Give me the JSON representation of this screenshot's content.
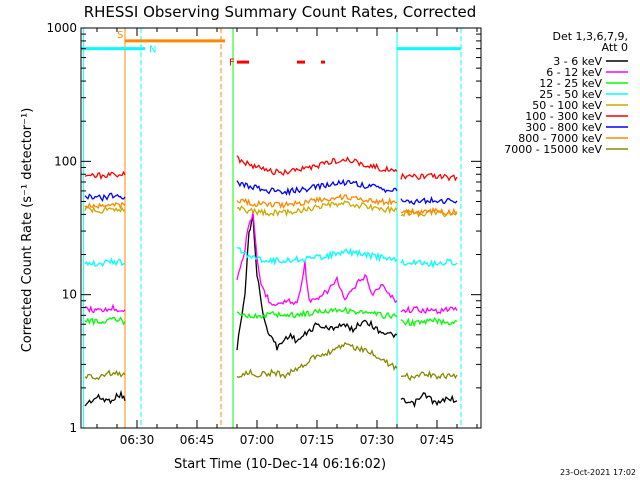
{
  "chart_data": {
    "type": "line",
    "title": "RHESSI Observing Summary Count Rates, Corrected",
    "xlabel": "Start Time (10-Dec-14 06:16:02)",
    "ylabel": "Corrected Count Rate (s⁻¹ detector⁻¹)",
    "yscale": "log",
    "ylim": [
      1,
      1000
    ],
    "xlim": [
      "06:16",
      "07:56"
    ],
    "x_ticks": [
      "06:30",
      "06:45",
      "07:00",
      "07:15",
      "07:30",
      "07:45"
    ],
    "y_ticks": [
      "1",
      "10",
      "100",
      "1000"
    ],
    "footer": "23-Oct-2021 17:02",
    "legend_header": [
      "Det 1,3,6,7,9,",
      "Att 0"
    ],
    "legend_placement": "right",
    "grid": false,
    "series": [
      {
        "name": "3 - 6 keV",
        "color": "#000000",
        "segments": [
          {
            "x": [
              "06:17",
              "06:20",
              "06:23",
              "06:26",
              "06:27"
            ],
            "y": [
              1.5,
              1.7,
              1.6,
              1.8,
              1.6
            ]
          },
          {
            "x": [
              "06:55",
              "06:57",
              "06:58",
              "06:59",
              "07:00",
              "07:02",
              "07:05",
              "07:08",
              "07:10",
              "07:12",
              "07:15",
              "07:18",
              "07:21",
              "07:24",
              "07:27",
              "07:30",
              "07:33",
              "07:35"
            ],
            "y": [
              4,
              10,
              30,
              38,
              14,
              6,
              4,
              5,
              4.5,
              5,
              6,
              5.5,
              6,
              5.5,
              6.5,
              5.5,
              5,
              5
            ]
          },
          {
            "x": [
              "07:36",
              "07:39",
              "07:42",
              "07:45",
              "07:48",
              "07:50"
            ],
            "y": [
              1.6,
              1.5,
              1.8,
              1.5,
              1.7,
              1.6
            ]
          }
        ]
      },
      {
        "name": "6 - 12 keV",
        "color": "#ff00ff",
        "segments": [
          {
            "x": [
              "06:17",
              "06:21",
              "06:24",
              "06:27"
            ],
            "y": [
              7.8,
              7.6,
              7.9,
              7.7
            ]
          },
          {
            "x": [
              "06:55",
              "06:57",
              "06:58",
              "06:59",
              "07:00",
              "07:01",
              "07:03",
              "07:05",
              "07:08",
              "07:10",
              "07:12",
              "07:13",
              "07:15",
              "07:18",
              "07:20",
              "07:22",
              "07:25",
              "07:27",
              "07:29",
              "07:31",
              "07:33",
              "07:35"
            ],
            "y": [
              13,
              22,
              35,
              40,
              18,
              12,
              9,
              8.5,
              9,
              8.5,
              17,
              9,
              9,
              11,
              13,
              9,
              12,
              14,
              10,
              12,
              10,
              9
            ]
          },
          {
            "x": [
              "07:36",
              "07:40",
              "07:44",
              "07:48",
              "07:50"
            ],
            "y": [
              7.6,
              7.8,
              7.5,
              7.8,
              7.6
            ]
          }
        ]
      },
      {
        "name": "12 - 25 keV",
        "color": "#00ff00",
        "segments": [
          {
            "x": [
              "06:17",
              "06:21",
              "06:24",
              "06:27"
            ],
            "y": [
              6.5,
              6.2,
              6.6,
              6.3
            ]
          },
          {
            "x": [
              "06:55",
              "06:58",
              "07:00",
              "07:04",
              "07:08",
              "07:12",
              "07:16",
              "07:20",
              "07:24",
              "07:28",
              "07:32",
              "07:35"
            ],
            "y": [
              7.5,
              7.0,
              6.8,
              7.2,
              7.0,
              7.2,
              7.5,
              7.8,
              7.5,
              7.2,
              7.0,
              6.9
            ]
          },
          {
            "x": [
              "07:36",
              "07:40",
              "07:44",
              "07:48",
              "07:50"
            ],
            "y": [
              6.3,
              6.1,
              6.4,
              6.2,
              6.3
            ]
          }
        ]
      },
      {
        "name": "25 - 50 keV",
        "color": "#00ffff",
        "segments": [
          {
            "x": [
              "06:17",
              "06:21",
              "06:24",
              "06:27"
            ],
            "y": [
              17.5,
              17,
              17.8,
              17.2
            ]
          },
          {
            "x": [
              "06:55",
              "06:59",
              "07:03",
              "07:07",
              "07:11",
              "07:15",
              "07:19",
              "07:23",
              "07:27",
              "07:31",
              "07:35"
            ],
            "y": [
              22,
              19,
              18,
              18,
              18.5,
              19,
              20,
              21,
              20,
              19,
              18.5
            ]
          },
          {
            "x": [
              "07:36",
              "07:40",
              "07:44",
              "07:48",
              "07:50"
            ],
            "y": [
              17.2,
              17.5,
              17,
              17.6,
              17.3
            ]
          }
        ]
      },
      {
        "name": "50 - 100 keV",
        "color": "#ccaa00",
        "segments": [
          {
            "x": [
              "06:17",
              "06:21",
              "06:24",
              "06:27"
            ],
            "y": [
              44,
              43,
              44.5,
              43.5
            ]
          },
          {
            "x": [
              "06:55",
              "06:59",
              "07:03",
              "07:07",
              "07:11",
              "07:15",
              "07:19",
              "07:23",
              "07:27",
              "07:31",
              "07:35"
            ],
            "y": [
              45,
              42,
              41,
              41.5,
              43,
              45,
              47,
              48,
              46,
              44,
              43
            ]
          },
          {
            "x": [
              "07:36",
              "07:40",
              "07:44",
              "07:48",
              "07:50"
            ],
            "y": [
              41,
              40.5,
              41.5,
              40,
              41
            ]
          }
        ]
      },
      {
        "name": "100 - 300 keV",
        "color": "#ff0000",
        "segments": [
          {
            "x": [
              "06:17",
              "06:21",
              "06:24",
              "06:27"
            ],
            "y": [
              80,
              78,
              81,
              79
            ]
          },
          {
            "x": [
              "06:55",
              "06:59",
              "07:03",
              "07:07",
              "07:11",
              "07:15",
              "07:19",
              "07:23",
              "07:27",
              "07:31",
              "07:35"
            ],
            "y": [
              105,
              92,
              84,
              82,
              86,
              93,
              100,
              103,
              95,
              88,
              84
            ]
          },
          {
            "x": [
              "07:36",
              "07:40",
              "07:44",
              "07:48",
              "07:50"
            ],
            "y": [
              77,
              76,
              77,
              75,
              76
            ]
          }
        ]
      },
      {
        "name": "300 - 800 keV",
        "color": "#0000ff",
        "segments": [
          {
            "x": [
              "06:17",
              "06:21",
              "06:24",
              "06:27"
            ],
            "y": [
              55,
              53,
              55.5,
              54
            ]
          },
          {
            "x": [
              "06:55",
              "06:59",
              "07:03",
              "07:07",
              "07:11",
              "07:15",
              "07:19",
              "07:23",
              "07:27",
              "07:31",
              "07:35"
            ],
            "y": [
              70,
              64,
              60,
              59,
              61,
              64,
              68,
              70,
              66,
              62,
              60
            ]
          },
          {
            "x": [
              "07:36",
              "07:40",
              "07:44",
              "07:48",
              "07:50"
            ],
            "y": [
              51,
              50,
              51,
              50,
              50.5
            ]
          }
        ]
      },
      {
        "name": "800 - 7000 keV",
        "color": "#ff8800",
        "segments": [
          {
            "x": [
              "06:17",
              "06:21",
              "06:24",
              "06:27"
            ],
            "y": [
              47,
              46,
              47.5,
              46.5
            ]
          },
          {
            "x": [
              "06:55",
              "06:59",
              "07:03",
              "07:07",
              "07:11",
              "07:15",
              "07:19",
              "07:23",
              "07:27",
              "07:31",
              "07:35"
            ],
            "y": [
              51,
              48,
              47,
              47.5,
              49,
              51,
              53,
              54,
              52,
              50,
              49
            ]
          },
          {
            "x": [
              "07:36",
              "07:40",
              "07:44",
              "07:48",
              "07:50"
            ],
            "y": [
              42,
              41.5,
              42.5,
              41,
              42
            ]
          }
        ]
      },
      {
        "name": "7000 - 15000 keV",
        "color": "#888800",
        "segments": [
          {
            "x": [
              "06:17",
              "06:20",
              "06:23",
              "06:26",
              "06:27"
            ],
            "y": [
              2.5,
              2.4,
              2.6,
              2.5,
              2.5
            ]
          },
          {
            "x": [
              "06:55",
              "06:58",
              "07:01",
              "07:04",
              "07:07",
              "07:10",
              "07:13",
              "07:16",
              "07:19",
              "07:22",
              "07:25",
              "07:28",
              "07:31",
              "07:35"
            ],
            "y": [
              2.4,
              2.6,
              2.5,
              2.6,
              2.5,
              2.8,
              3.2,
              3.6,
              3.8,
              4.2,
              4.0,
              3.8,
              3.3,
              2.8
            ]
          },
          {
            "x": [
              "07:36",
              "07:39",
              "07:42",
              "07:45",
              "07:48",
              "07:50"
            ],
            "y": [
              2.5,
              2.4,
              2.6,
              2.4,
              2.5,
              2.5
            ]
          }
        ]
      }
    ],
    "flag_bars": [
      {
        "y": 700,
        "color": "#00ffff",
        "segments": [
          [
            "06:16",
            "06:32"
          ],
          [
            "07:35",
            "07:51"
          ]
        ]
      },
      {
        "y": 800,
        "color": "#ff8800",
        "segments": [
          [
            "06:27",
            "06:52"
          ]
        ]
      },
      {
        "y": 555,
        "color": "#ff0000",
        "segments": [
          [
            "06:55",
            "06:58"
          ],
          [
            "07:10",
            "07:12"
          ],
          [
            "07:16",
            "07:17"
          ]
        ]
      }
    ],
    "flag_labels": [
      {
        "text": "S",
        "x": "06:25",
        "y": 900,
        "color": "#ff8800"
      },
      {
        "text": "N",
        "x": "06:33",
        "y": 700,
        "color": "#00ffff"
      },
      {
        "text": "F",
        "x": "06:53",
        "y": 560,
        "color": "#ff0000"
      }
    ],
    "markers": [
      {
        "x": "06:16:40",
        "color": "#00ffff",
        "dashed": false
      },
      {
        "x": "06:27",
        "color": "#ff8800",
        "dashed": false
      },
      {
        "x": "06:31",
        "color": "#00ffff",
        "dashed": true
      },
      {
        "x": "06:51",
        "color": "#ff8800",
        "dashed": true
      },
      {
        "x": "06:54",
        "color": "#00ff00",
        "dashed": false
      },
      {
        "x": "07:35",
        "color": "#00ffff",
        "dashed": false
      },
      {
        "x": "07:51",
        "color": "#00ffff",
        "dashed": true
      }
    ]
  }
}
